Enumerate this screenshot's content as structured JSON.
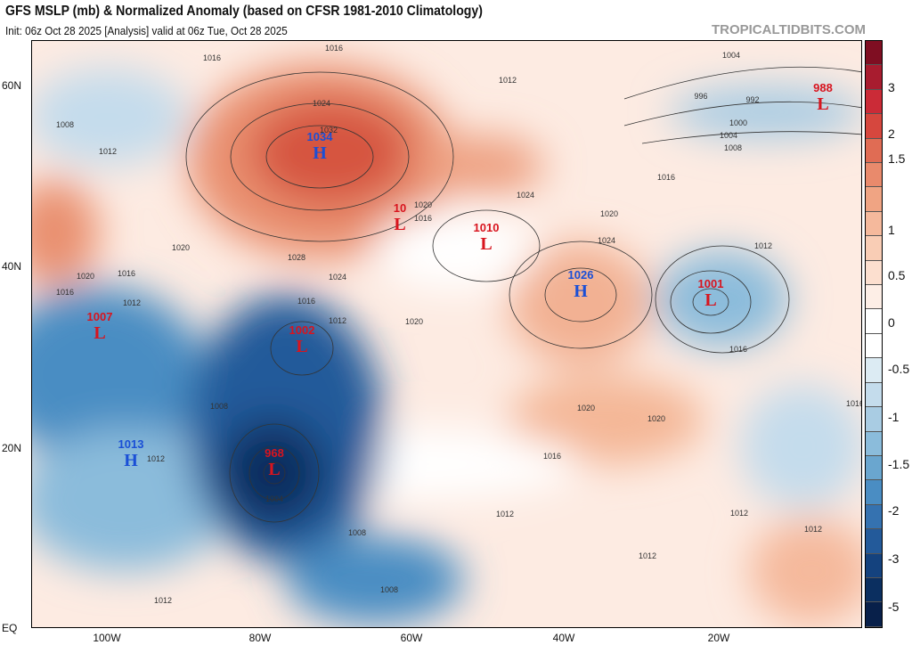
{
  "header": {
    "title": "GFS MSLP (mb) & Normalized Anomaly (based on CFSR 1981-2010 Climatology)",
    "subtitle": "Init: 06z Oct 28 2025   [Analysis]   valid at 06z Tue, Oct 28 2025",
    "brand": "TROPICALTIDBITS.COM"
  },
  "axes": {
    "lat_labels": [
      "60N",
      "40N",
      "20N",
      "EQ"
    ],
    "lon_labels": [
      "100W",
      "80W",
      "60W",
      "40W",
      "20W"
    ]
  },
  "colorbar": {
    "ticks": [
      "3",
      "2",
      "1.5",
      "1",
      "0.5",
      "0",
      "-0.5",
      "-1",
      "-1.5",
      "-2",
      "-3",
      "-5"
    ],
    "colors": [
      "#7f0e22",
      "#a81c2f",
      "#cb2b37",
      "#d6473e",
      "#e06c54",
      "#e98a6c",
      "#f0a483",
      "#f5b99c",
      "#f9cdb5",
      "#fcdfcf",
      "#fdeee6",
      "#ffffff",
      "#ffffff",
      "#dcebf3",
      "#c4dcec",
      "#a9cce3",
      "#8bbcdb",
      "#6aa6cf",
      "#4a8dc3",
      "#3572b0",
      "#235a9a",
      "#14427e",
      "#0b2f60",
      "#08204a"
    ]
  },
  "centers": [
    {
      "type": "H",
      "value": "1034"
    },
    {
      "type": "L",
      "value": "10"
    },
    {
      "type": "L",
      "value": "1010"
    },
    {
      "type": "H",
      "value": "1026"
    },
    {
      "type": "L",
      "value": "1001"
    },
    {
      "type": "L",
      "value": "988"
    },
    {
      "type": "L",
      "value": "1007"
    },
    {
      "type": "L",
      "value": "1002"
    },
    {
      "type": "L",
      "value": "968"
    },
    {
      "type": "H",
      "value": "1013"
    }
  ],
  "isobar_labels": [
    "1016",
    "1016",
    "1012",
    "1004",
    "996",
    "992",
    "1000",
    "1004",
    "1008",
    "1008",
    "1012",
    "1024",
    "1032",
    "1024",
    "1016",
    "1020",
    "1024",
    "1012",
    "1016",
    "1020",
    "1016",
    "1012",
    "1020",
    "1016",
    "1028",
    "1024",
    "1016",
    "1012",
    "1020",
    "1008",
    "1012",
    "1004",
    "1008",
    "1016",
    "1020",
    "1020",
    "1016",
    "1012",
    "1012",
    "1012",
    "1012",
    "1008",
    "1012",
    "1020",
    "1016"
  ]
}
